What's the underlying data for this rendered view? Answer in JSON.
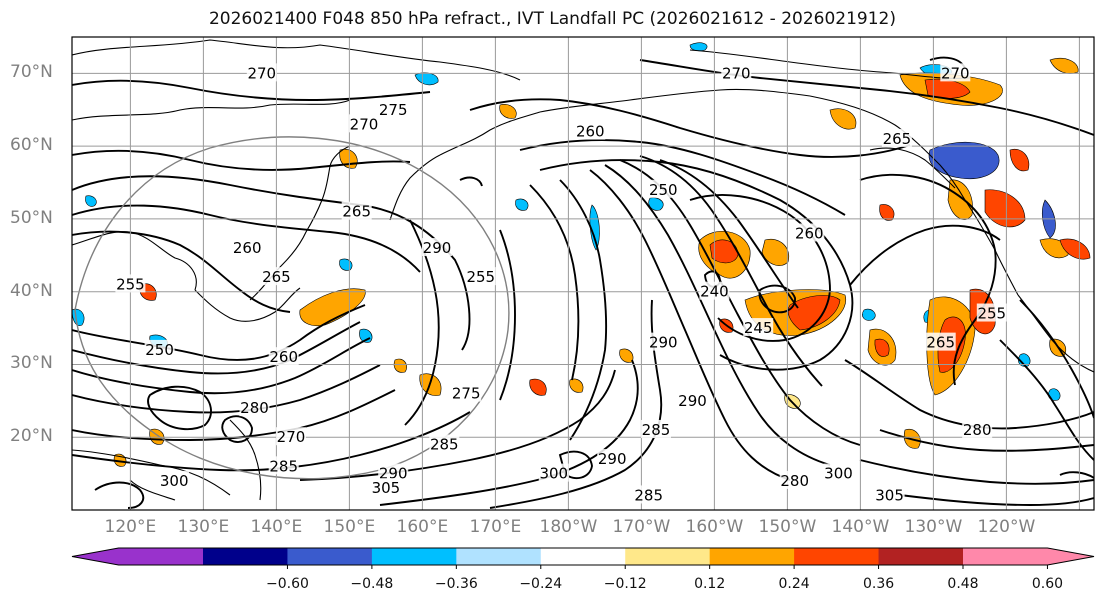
{
  "title": "2026021400 F048 850 hPa refract., IVT Landfall PC (2026021612 - 2026021912)",
  "lat_labels": [
    "70°N",
    "60°N",
    "50°N",
    "40°N",
    "30°N",
    "20°N"
  ],
  "lon_labels": [
    "120°E",
    "130°E",
    "140°E",
    "150°E",
    "160°E",
    "170°E",
    "180°W",
    "170°W",
    "160°W",
    "150°W",
    "140°W",
    "130°W",
    "120°W"
  ],
  "colorbar": {
    "colors": [
      "#9932cc",
      "#00008b",
      "#3a5bcd",
      "#00bfff",
      "#b0e2ff",
      "#ffffff",
      "#ffe88a",
      "#ffa500",
      "#ff4500",
      "#b22222",
      "#ff88aa"
    ],
    "tick_labels": [
      "−0.60",
      "−0.48",
      "−0.36",
      "−0.24",
      "−0.12",
      "0.12",
      "0.24",
      "0.36",
      "0.48",
      "0.60"
    ]
  },
  "contour_labels": [
    {
      "text": "270",
      "lon": 138,
      "lat": 70
    },
    {
      "text": "275",
      "lon": 156,
      "lat": 65
    },
    {
      "text": "270",
      "lon": 152,
      "lat": 63
    },
    {
      "text": "260",
      "lon": 183,
      "lat": 62
    },
    {
      "text": "270",
      "lon": 203,
      "lat": 70
    },
    {
      "text": "270",
      "lon": 233,
      "lat": 70
    },
    {
      "text": "265",
      "lon": 225,
      "lat": 61
    },
    {
      "text": "250",
      "lon": 193,
      "lat": 54
    },
    {
      "text": "265",
      "lon": 151,
      "lat": 51
    },
    {
      "text": "260",
      "lon": 213,
      "lat": 48
    },
    {
      "text": "260",
      "lon": 136,
      "lat": 46
    },
    {
      "text": "265",
      "lon": 140,
      "lat": 42
    },
    {
      "text": "290",
      "lon": 162,
      "lat": 46
    },
    {
      "text": "255",
      "lon": 120,
      "lat": 41
    },
    {
      "text": "255",
      "lon": 168,
      "lat": 42
    },
    {
      "text": "240",
      "lon": 200,
      "lat": 40
    },
    {
      "text": "245",
      "lon": 206,
      "lat": 35
    },
    {
      "text": "250",
      "lon": 124,
      "lat": 32
    },
    {
      "text": "260",
      "lon": 141,
      "lat": 31
    },
    {
      "text": "290",
      "lon": 193,
      "lat": 33
    },
    {
      "text": "255",
      "lon": 238,
      "lat": 37
    },
    {
      "text": "265",
      "lon": 231,
      "lat": 33
    },
    {
      "text": "290",
      "lon": 197,
      "lat": 25
    },
    {
      "text": "275",
      "lon": 166,
      "lat": 26
    },
    {
      "text": "280",
      "lon": 137,
      "lat": 24
    },
    {
      "text": "285",
      "lon": 192,
      "lat": 21
    },
    {
      "text": "270",
      "lon": 142,
      "lat": 20
    },
    {
      "text": "285",
      "lon": 163,
      "lat": 19
    },
    {
      "text": "280",
      "lon": 236,
      "lat": 21
    },
    {
      "text": "290",
      "lon": 156,
      "lat": 15
    },
    {
      "text": "290",
      "lon": 186,
      "lat": 17
    },
    {
      "text": "300",
      "lon": 178,
      "lat": 15
    },
    {
      "text": "300",
      "lon": 126,
      "lat": 14
    },
    {
      "text": "285",
      "lon": 141,
      "lat": 16
    },
    {
      "text": "280",
      "lon": 211,
      "lat": 14
    },
    {
      "text": "300",
      "lon": 217,
      "lat": 15
    },
    {
      "text": "285",
      "lon": 191,
      "lat": 12
    },
    {
      "text": "305",
      "lon": 155,
      "lat": 13
    },
    {
      "text": "305",
      "lon": 224,
      "lat": 12
    }
  ]
}
